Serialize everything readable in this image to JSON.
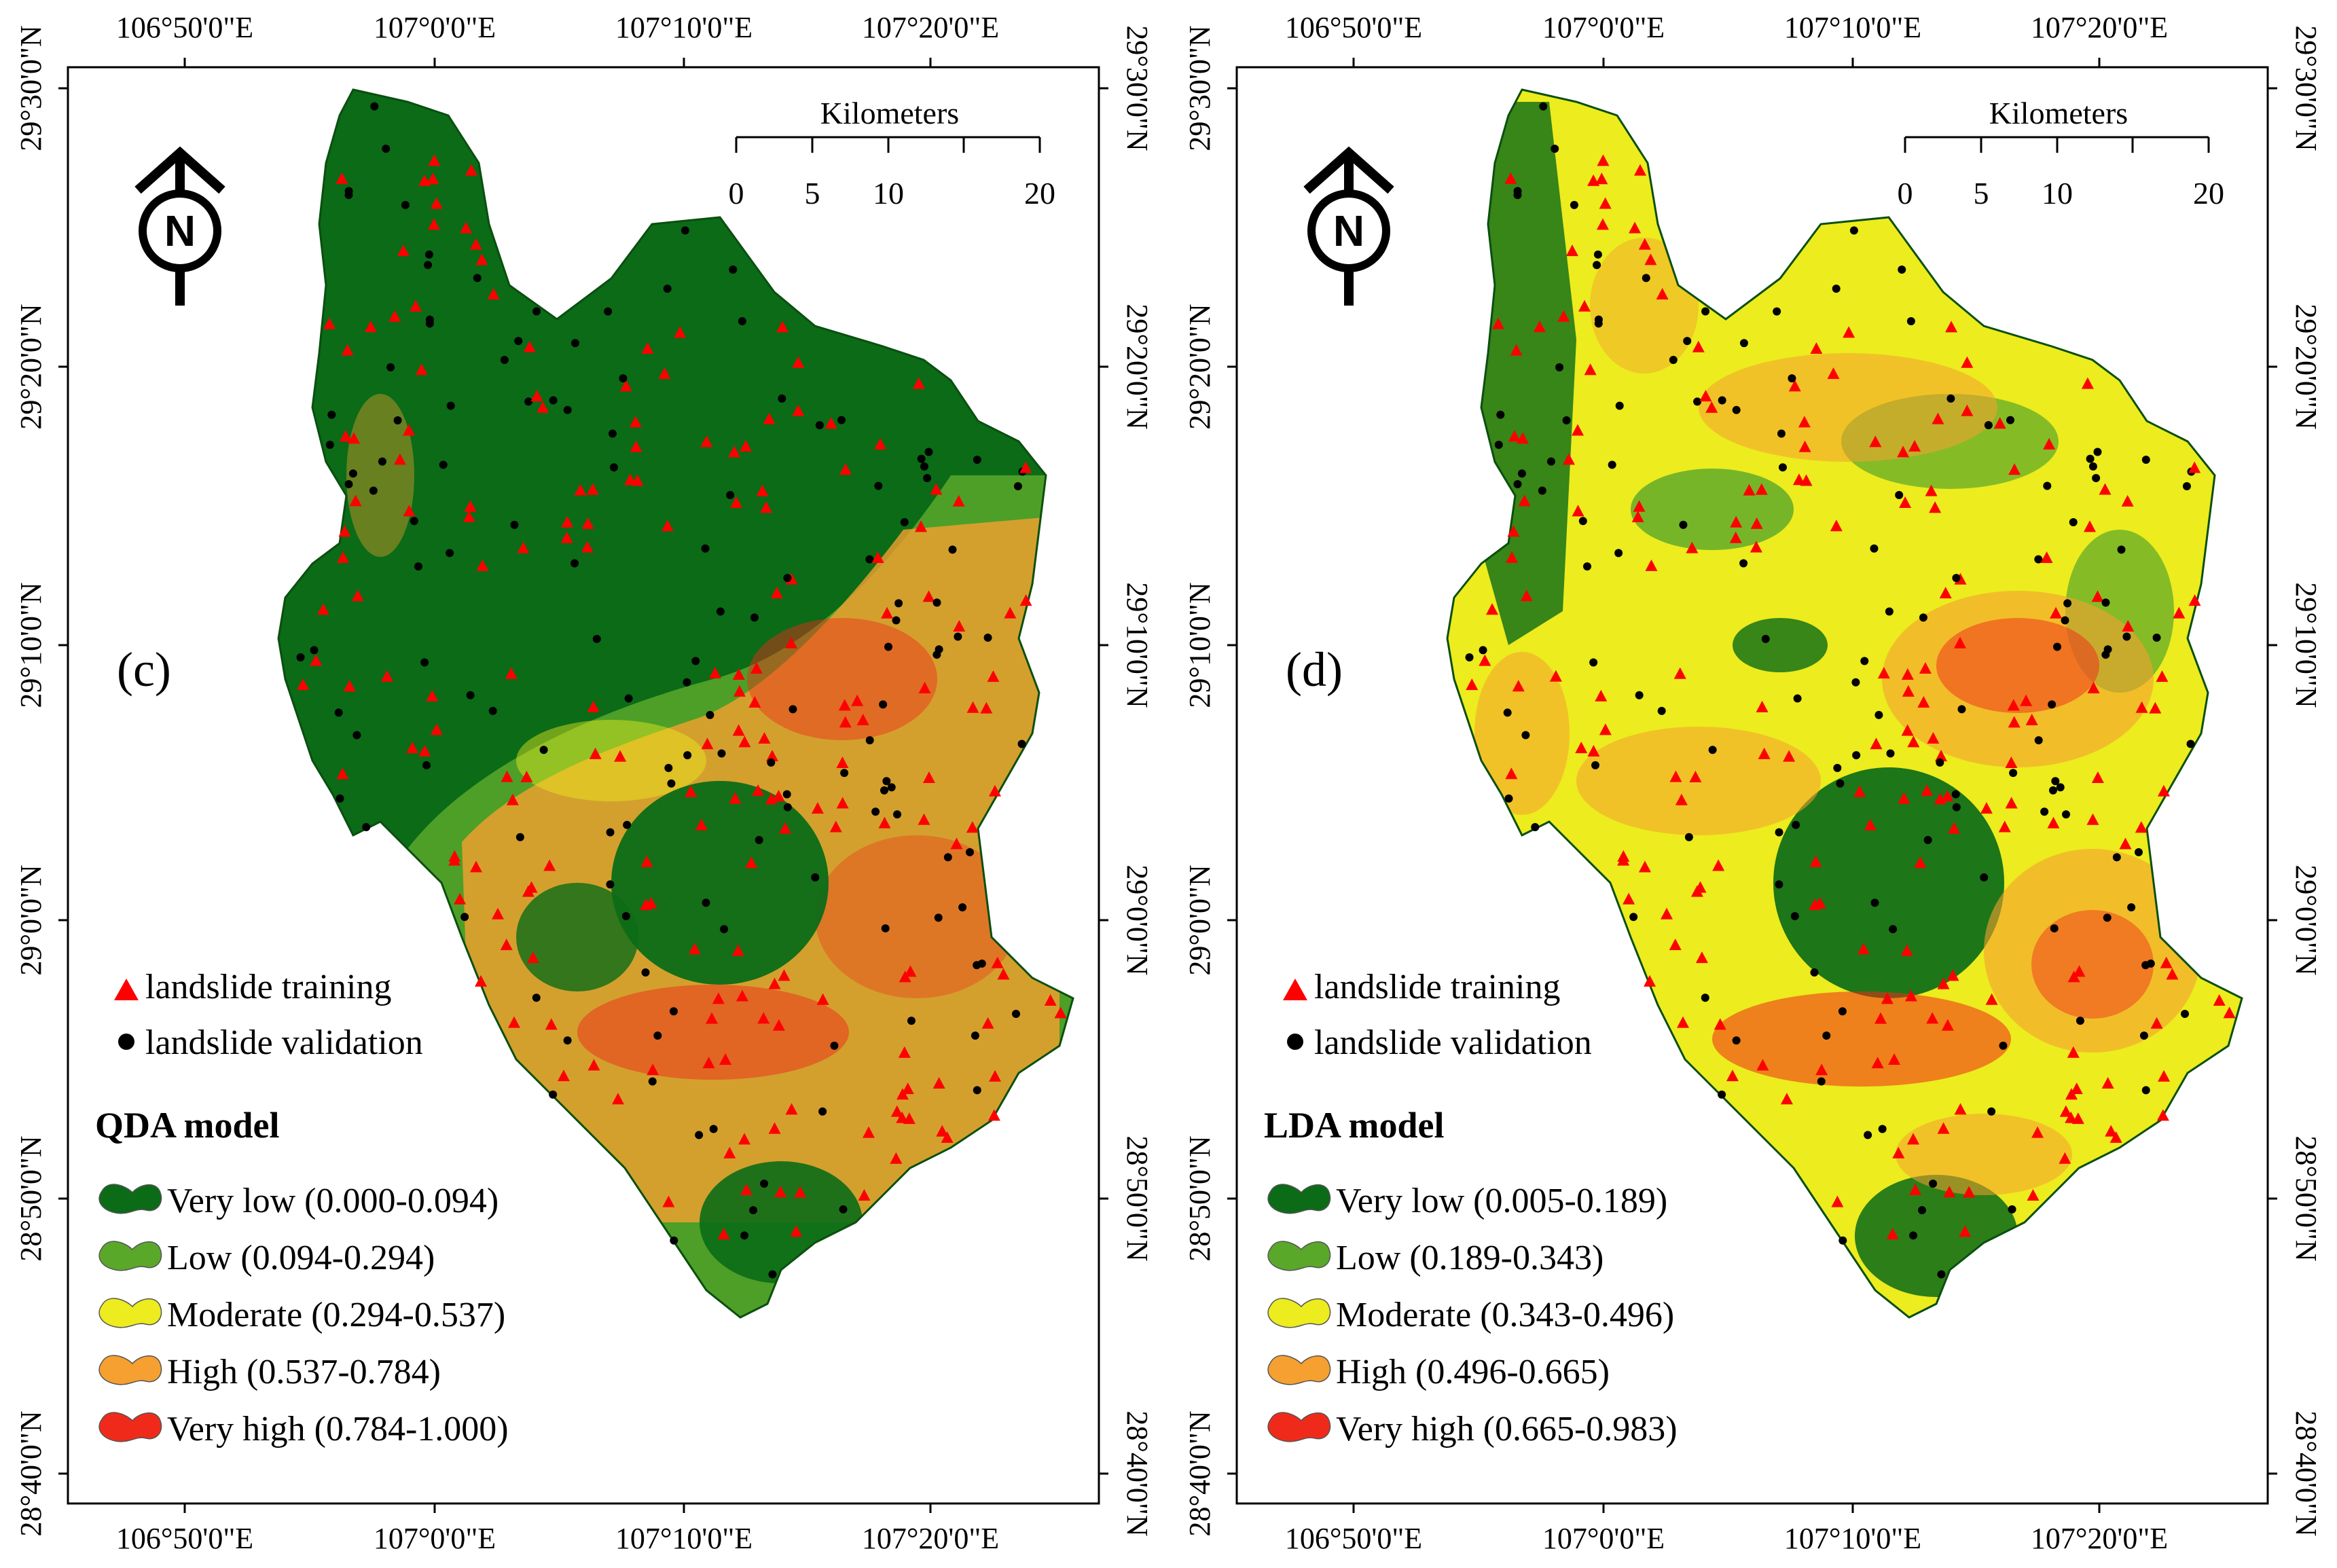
{
  "colors": {
    "very_low": "#0b6b17",
    "low": "#5aa82a",
    "moderate": "#ecec1e",
    "high": "#f5a030",
    "very_high": "#f02a1a",
    "training": "#ff0000",
    "validation": "#000000"
  },
  "axes": {
    "top_lon": [
      "106°50'0\"E",
      "107°0'0\"E",
      "107°10'0\"E",
      "107°20'0\"E"
    ],
    "bottom_lon": [
      "106°50'0\"E",
      "107°0'0\"E",
      "107°10'0\"E",
      "107°20'0\"E"
    ],
    "lat": [
      "29°30'0\"N",
      "29°20'0\"N",
      "29°10'0\"N",
      "29°0'0\"N",
      "28°50'0\"N",
      "28°40'0\"N"
    ]
  },
  "scale_bar": {
    "title": "Kilometers",
    "ticks": [
      "0",
      "5",
      "10",
      "20"
    ]
  },
  "north_arrow": {
    "letter": "N",
    "icon": "north-arrow-icon"
  },
  "points_legend": {
    "training": "landslide training",
    "validation": "landslide validation"
  },
  "panels": [
    {
      "letter": "(c)",
      "model_title": "QDA model",
      "classes": [
        "Very low (0.000-0.094)",
        "Low (0.094-0.294)",
        "Moderate (0.294-0.537)",
        "High (0.537-0.784)",
        "Very high (0.784-1.000)"
      ]
    },
    {
      "letter": "(d)",
      "model_title": "LDA model",
      "classes": [
        "Very low (0.005-0.189)",
        "Low (0.189-0.343)",
        "Moderate (0.343-0.496)",
        "High (0.496-0.665)",
        "Very high (0.665-0.983)"
      ]
    }
  ]
}
